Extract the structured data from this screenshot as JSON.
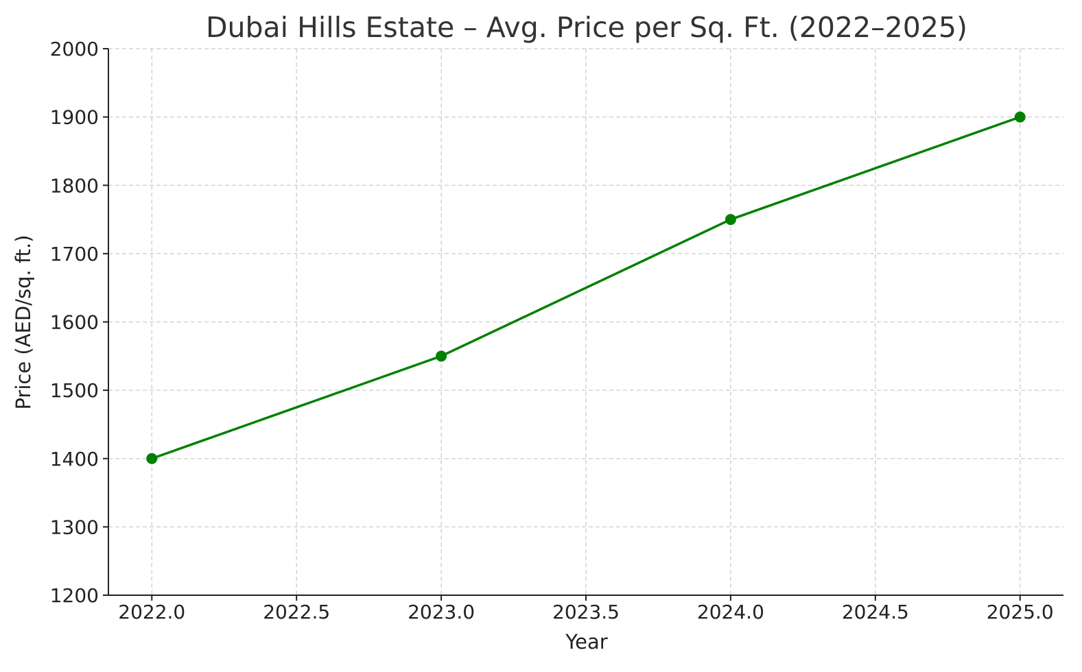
{
  "chart_data": {
    "type": "line",
    "title": "Dubai Hills Estate – Avg. Price per Sq. Ft. (2022–2025)",
    "xlabel": "Year",
    "ylabel": "Price (AED/sq. ft.)",
    "x": [
      2022,
      2023,
      2024,
      2025
    ],
    "series": [
      {
        "name": "Avg. Price per Sq. Ft.",
        "color": "#008000",
        "values": [
          1400,
          1550,
          1750,
          1900
        ]
      }
    ],
    "xlim": [
      2021.85,
      2025.15
    ],
    "ylim": [
      1200,
      2000
    ],
    "xticks": [
      2022.0,
      2022.5,
      2023.0,
      2023.5,
      2024.0,
      2024.5,
      2025.0
    ],
    "xtick_labels": [
      "2022.0",
      "2022.5",
      "2023.0",
      "2023.5",
      "2024.0",
      "2024.5",
      "2025.0"
    ],
    "yticks": [
      1200,
      1300,
      1400,
      1500,
      1600,
      1700,
      1800,
      1900,
      2000
    ],
    "ytick_labels": [
      "1200",
      "1300",
      "1400",
      "1500",
      "1600",
      "1700",
      "1800",
      "1900",
      "2000"
    ],
    "grid": true,
    "legend": "none"
  }
}
